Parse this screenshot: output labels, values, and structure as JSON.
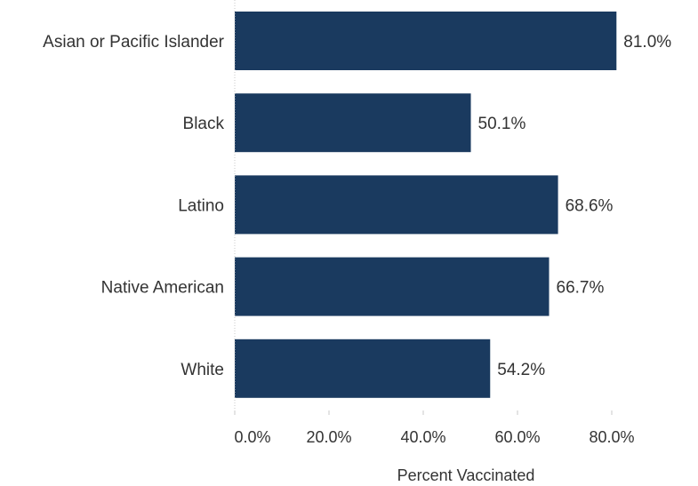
{
  "chart_data": {
    "type": "bar",
    "orientation": "horizontal",
    "categories": [
      "Asian or Pacific Islander",
      "Black",
      "Latino",
      "Native American",
      "White"
    ],
    "values": [
      81.0,
      50.1,
      68.6,
      66.7,
      54.2
    ],
    "value_labels": [
      "81.0%",
      "50.1%",
      "68.6%",
      "66.7%",
      "54.2%"
    ],
    "xlabel": "Percent Vaccinated",
    "ylabel": "",
    "xlim": [
      0,
      100
    ],
    "ticks": [
      0,
      20,
      40,
      60,
      80
    ],
    "tick_labels": [
      "0.0%",
      "20.0%",
      "40.0%",
      "60.0%",
      "80.0%"
    ],
    "bar_color": "#1a3a5f",
    "grid": false,
    "legend": "none"
  }
}
